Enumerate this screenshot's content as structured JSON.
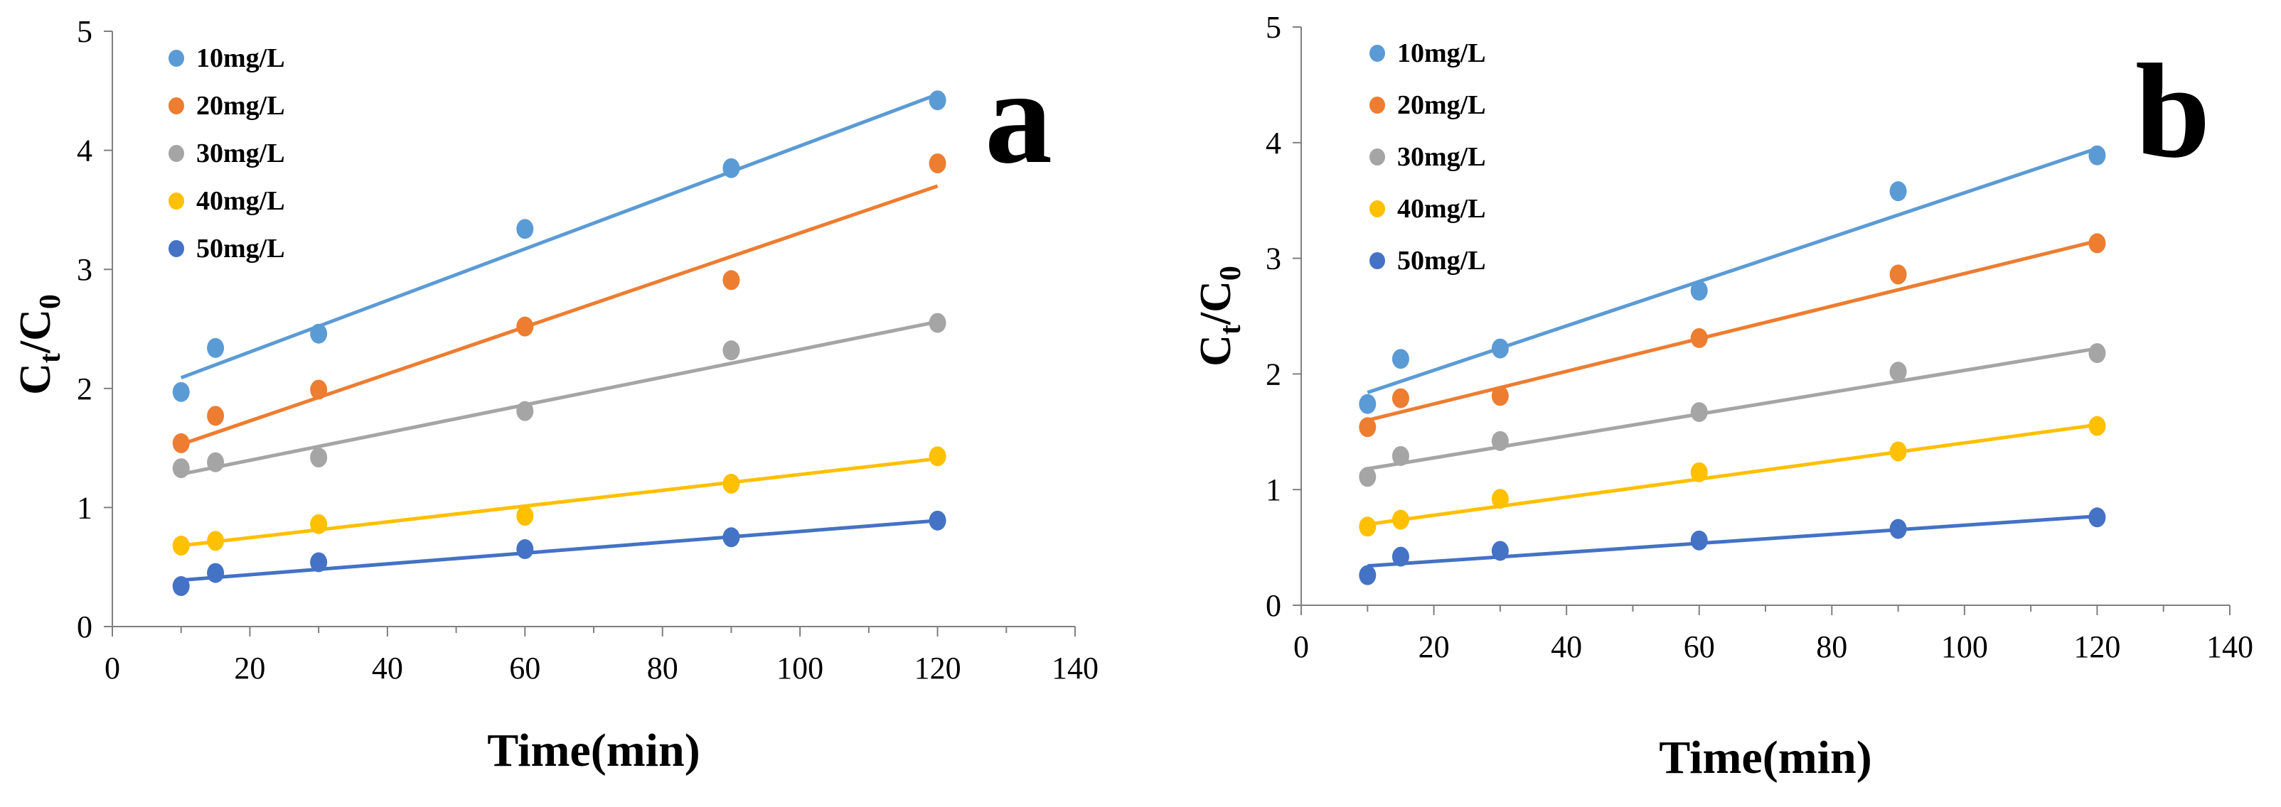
{
  "chart_data": [
    {
      "type": "scatter",
      "panel_label": "a",
      "xlabel": "Time(min)",
      "ylabel": {
        "main": "C",
        "sub1": "t",
        "slash": "/C",
        "sub2": "0"
      },
      "xlim": [
        0,
        140
      ],
      "ylim": [
        0,
        5
      ],
      "xticks": [
        0,
        20,
        40,
        60,
        80,
        100,
        120,
        140
      ],
      "yticks": [
        0,
        1,
        2,
        3,
        4,
        5
      ],
      "x": [
        10,
        15,
        30,
        60,
        90,
        120
      ],
      "series": [
        {
          "name": "10mg/L",
          "color": "#5B9BD5",
          "values": [
            1.97,
            2.34,
            2.46,
            3.34,
            3.85,
            4.42
          ],
          "fit": [
            2.09,
            4.47
          ]
        },
        {
          "name": "20mg/L",
          "color": "#ED7D31",
          "values": [
            1.54,
            1.77,
            1.99,
            2.52,
            2.91,
            3.89
          ],
          "fit": [
            1.53,
            3.7
          ]
        },
        {
          "name": "30mg/L",
          "color": "#A5A5A5",
          "values": [
            1.33,
            1.38,
            1.42,
            1.81,
            2.32,
            2.55
          ],
          "fit": [
            1.28,
            2.56
          ]
        },
        {
          "name": "40mg/L",
          "color": "#FFC000",
          "values": [
            0.68,
            0.72,
            0.86,
            0.93,
            1.2,
            1.43
          ],
          "fit": [
            0.68,
            1.41
          ]
        },
        {
          "name": "50mg/L",
          "color": "#4472C4",
          "values": [
            0.34,
            0.45,
            0.54,
            0.65,
            0.75,
            0.89
          ],
          "fit": [
            0.39,
            0.89
          ]
        }
      ]
    },
    {
      "type": "scatter",
      "panel_label": "b",
      "xlabel": "Time(min)",
      "ylabel": {
        "main": "C",
        "sub1": "t",
        "slash": "/C",
        "sub2": "0"
      },
      "xlim": [
        0,
        140
      ],
      "ylim": [
        0,
        5
      ],
      "xticks": [
        0,
        20,
        40,
        60,
        80,
        100,
        120,
        140
      ],
      "yticks": [
        0,
        1,
        2,
        3,
        4,
        5
      ],
      "x": [
        10,
        15,
        30,
        60,
        90,
        120
      ],
      "series": [
        {
          "name": "10mg/L",
          "color": "#5B9BD5",
          "values": [
            1.74,
            2.13,
            2.22,
            2.72,
            3.58,
            3.89
          ],
          "fit": [
            1.84,
            3.95
          ]
        },
        {
          "name": "20mg/L",
          "color": "#ED7D31",
          "values": [
            1.54,
            1.79,
            1.81,
            2.31,
            2.86,
            3.13
          ],
          "fit": [
            1.6,
            3.15
          ]
        },
        {
          "name": "30mg/L",
          "color": "#A5A5A5",
          "values": [
            1.11,
            1.29,
            1.42,
            1.67,
            2.02,
            2.18
          ],
          "fit": [
            1.18,
            2.22
          ]
        },
        {
          "name": "40mg/L",
          "color": "#FFC000",
          "values": [
            0.68,
            0.74,
            0.92,
            1.15,
            1.33,
            1.55
          ],
          "fit": [
            0.7,
            1.56
          ]
        },
        {
          "name": "50mg/L",
          "color": "#4472C4",
          "values": [
            0.26,
            0.42,
            0.47,
            0.56,
            0.66,
            0.76
          ],
          "fit": [
            0.34,
            0.77
          ]
        }
      ]
    }
  ]
}
